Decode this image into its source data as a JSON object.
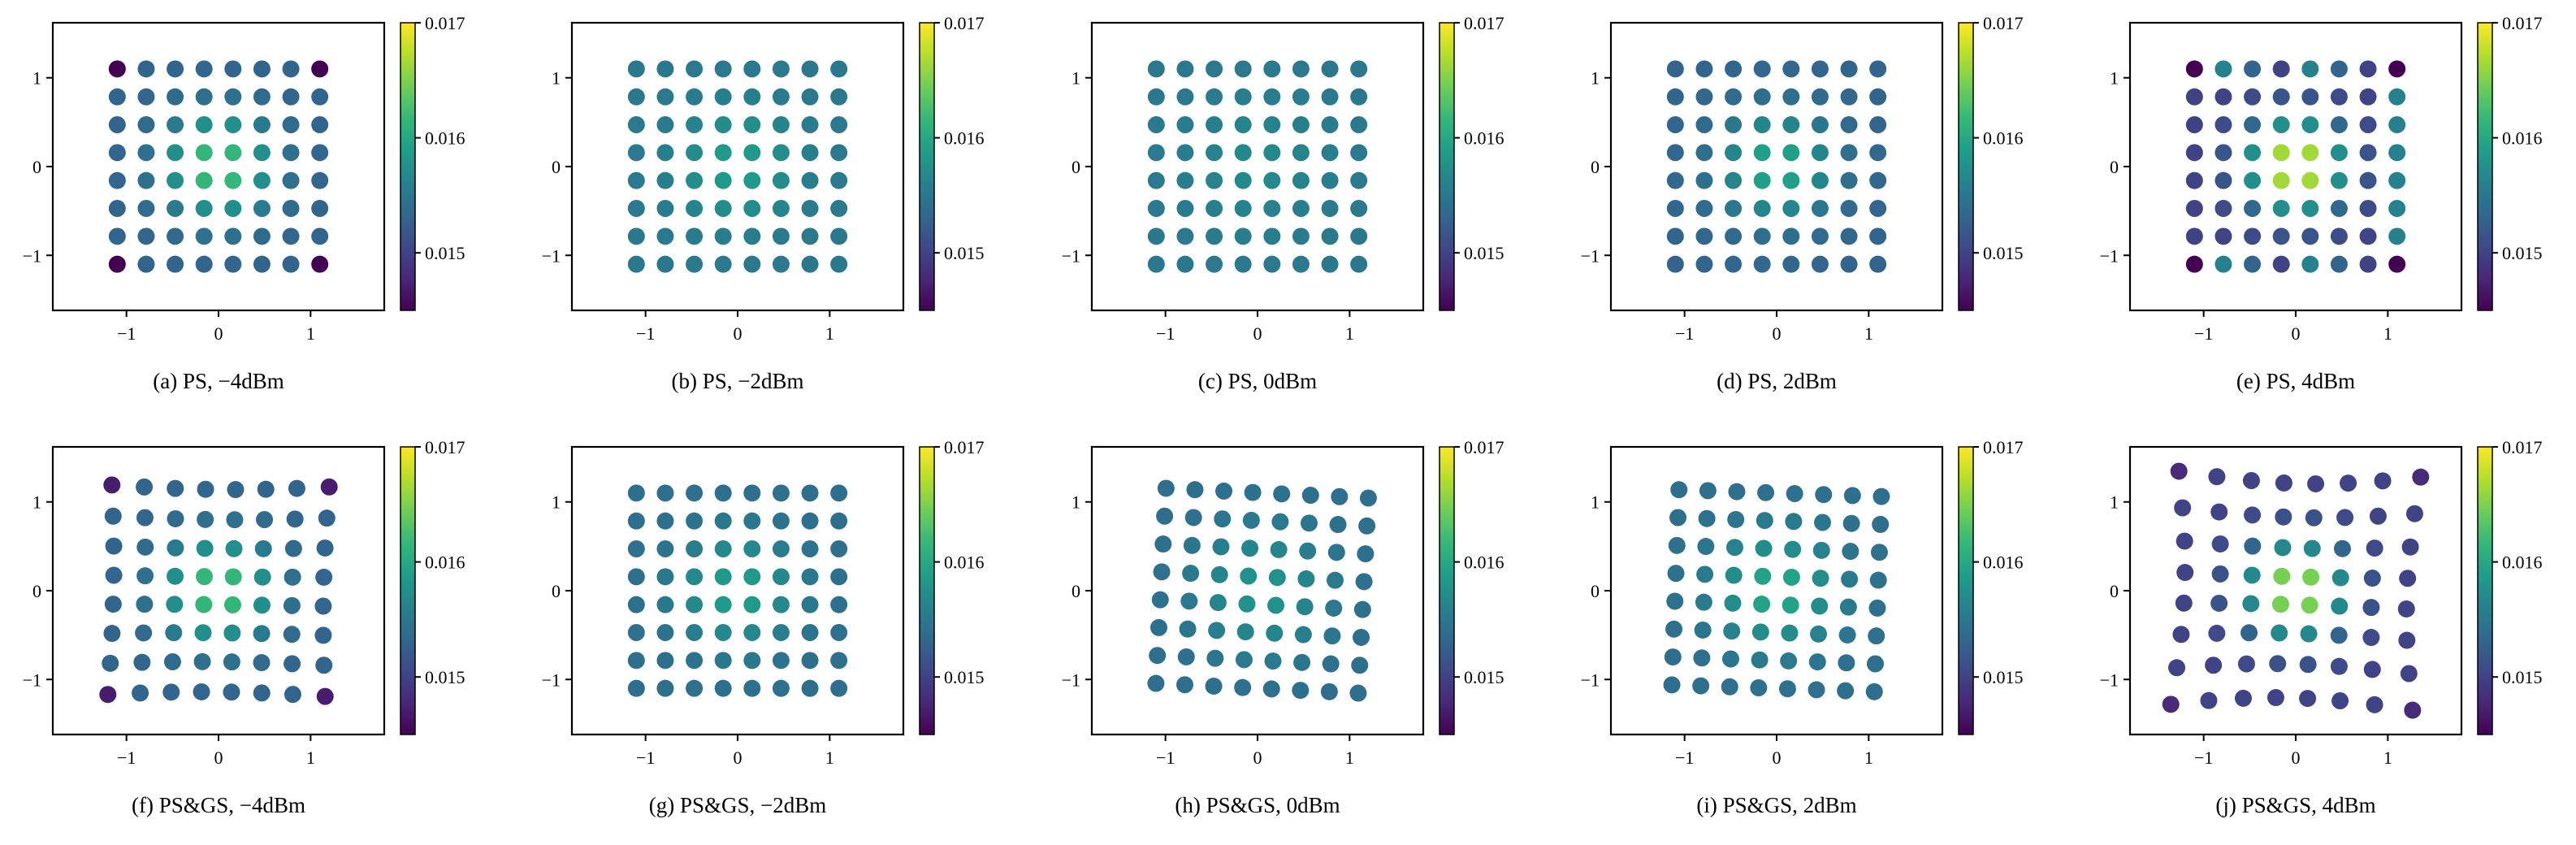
{
  "chart_data": {
    "type": "scatter",
    "xlim": [
      -1.8,
      1.8
    ],
    "ylim": [
      -1.62,
      1.62
    ],
    "xticks": [
      -1,
      0,
      1
    ],
    "yticks": [
      -1,
      0,
      1
    ],
    "tick_labels": [
      "−1",
      "0",
      "1"
    ],
    "colorbar": {
      "colormap": "viridis",
      "range": [
        0.0145,
        0.017
      ],
      "ticks": [
        0.015,
        0.016,
        0.017
      ],
      "tick_labels": [
        "0.015",
        "0.016",
        "0.017"
      ]
    },
    "colors": {
      "viridis_stops": [
        "#440154",
        "#482878",
        "#3e4989",
        "#31688e",
        "#26828e",
        "#1f9e89",
        "#35b779",
        "#6ece58",
        "#b5de2b",
        "#fde725"
      ]
    },
    "panels": [
      {
        "id": "a",
        "caption": "(a) PS, −4dBm",
        "grid": "regular",
        "base": 0.0153,
        "peak": 0.0163,
        "falloff": 0.3,
        "corner": 0.0145,
        "max_coord": 1.1
      },
      {
        "id": "b",
        "caption": "(b) PS, −2dBm",
        "grid": "regular",
        "base": 0.0155,
        "peak": 0.0159,
        "falloff": 0.4,
        "corner": null,
        "max_coord": 1.1
      },
      {
        "id": "c",
        "caption": "(c) PS, 0dBm",
        "grid": "regular",
        "base": 0.0155,
        "peak": 0.0157,
        "falloff": 0.5,
        "corner": null,
        "max_coord": 1.1
      },
      {
        "id": "d",
        "caption": "(d) PS, 2dBm",
        "grid": "regular",
        "base": 0.0153,
        "peak": 0.016,
        "falloff": 0.35,
        "corner": null,
        "max_coord": 1.1
      },
      {
        "id": "e",
        "caption": "(e) PS, 4dBm",
        "grid": "regular",
        "base": 0.015,
        "peak": 0.017,
        "falloff": 0.25,
        "corner": 0.0145,
        "max_coord": 1.1
      },
      {
        "id": "f",
        "caption": "(f) PS&GS, −4dBm",
        "grid": "pincushion_light",
        "base": 0.0153,
        "peak": 0.0163,
        "falloff": 0.3,
        "corner": 0.0147,
        "max_coord": 1.1
      },
      {
        "id": "g",
        "caption": "(g) PS&GS, −2dBm",
        "grid": "regular",
        "base": 0.0154,
        "peak": 0.0159,
        "falloff": 0.4,
        "corner": null,
        "max_coord": 1.1
      },
      {
        "id": "h",
        "caption": "(h) PS&GS, 0dBm",
        "grid": "rotated",
        "base": 0.0154,
        "peak": 0.0158,
        "falloff": 0.5,
        "corner": null,
        "max_coord": 1.1
      },
      {
        "id": "i",
        "caption": "(i) PS&GS, 2dBm",
        "grid": "rotated_small",
        "base": 0.0154,
        "peak": 0.016,
        "falloff": 0.4,
        "corner": null,
        "max_coord": 1.1
      },
      {
        "id": "j",
        "caption": "(j) PS&GS, 4dBm",
        "grid": "pincushion",
        "base": 0.015,
        "peak": 0.0168,
        "falloff": 0.25,
        "corner": 0.0148,
        "max_coord": 1.1
      }
    ]
  }
}
